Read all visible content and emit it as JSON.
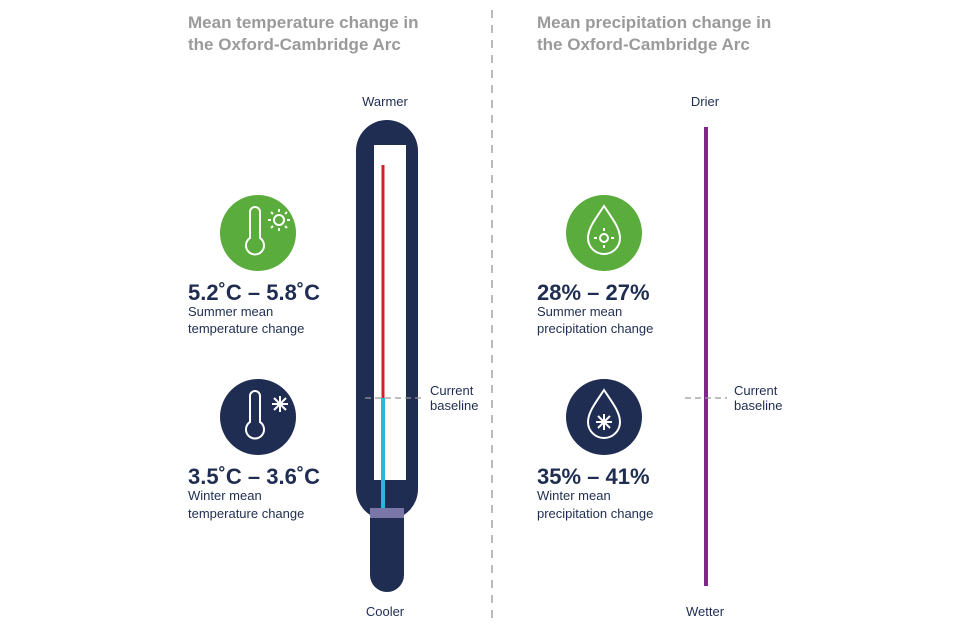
{
  "left": {
    "title": [
      "Mean temperature change in",
      "the Oxford-Cambridge Arc"
    ],
    "top_label": "Warmer",
    "bottom_label": "Cooler",
    "baseline_label": [
      "Current",
      "baseline"
    ],
    "items": [
      {
        "range": "5.2˚C – 5.8˚C",
        "caption": [
          "Summer mean",
          "temperature change"
        ]
      },
      {
        "range": "3.5˚C – 3.6˚C",
        "caption": [
          "Winter mean",
          "temperature change"
        ]
      }
    ]
  },
  "right": {
    "title": [
      "Mean precipitation change in",
      "the Oxford-Cambridge Arc"
    ],
    "top_label": "Drier",
    "bottom_label": "Wetter",
    "baseline_label": [
      "Current",
      "baseline"
    ],
    "items": [
      {
        "range": "28% – 27%",
        "caption": [
          "Summer mean",
          "precipitation change"
        ]
      },
      {
        "range": "35% – 41%",
        "caption": [
          "Winter mean",
          "precipitation change"
        ]
      }
    ]
  }
}
